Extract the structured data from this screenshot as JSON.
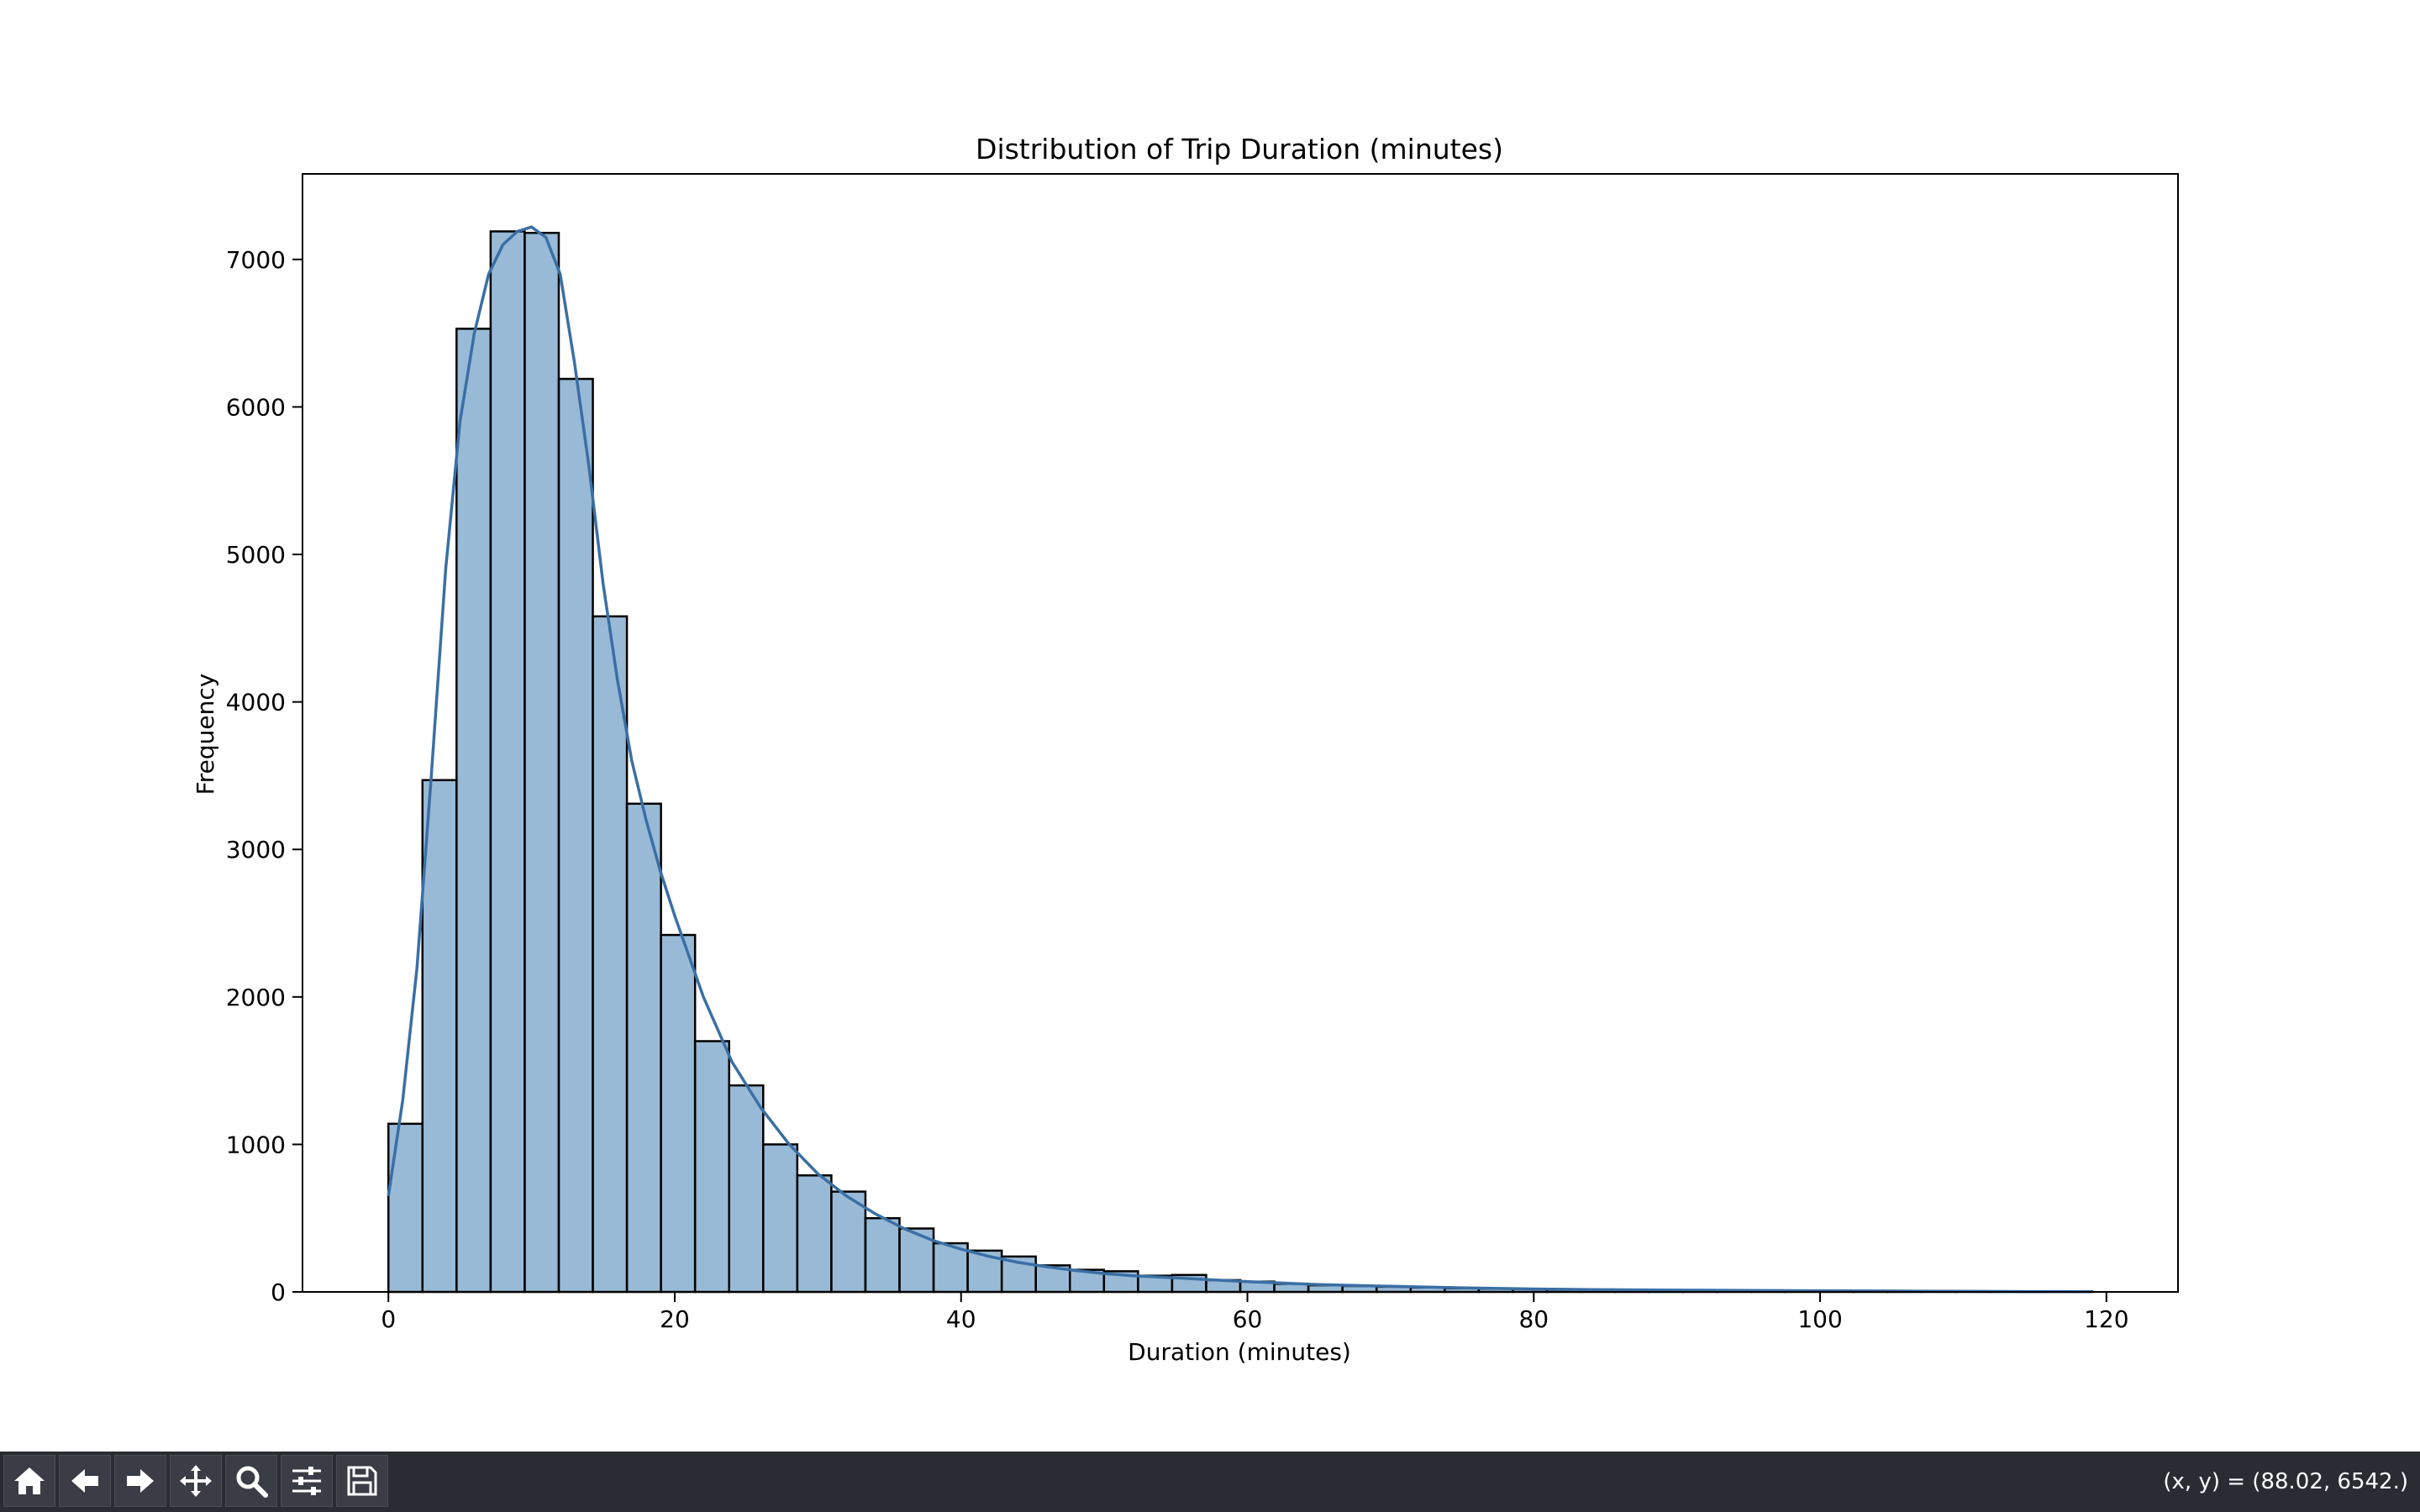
{
  "chart_data": {
    "type": "bar",
    "title": "Distribution of Trip Duration (minutes)",
    "xlabel": "Duration (minutes)",
    "ylabel": "Frequency",
    "xlim": [
      -6,
      125
    ],
    "ylim": [
      0,
      7580
    ],
    "xticks": [
      0,
      20,
      40,
      60,
      80,
      100,
      120
    ],
    "yticks": [
      0,
      1000,
      2000,
      3000,
      4000,
      5000,
      6000,
      7000
    ],
    "bin_edges": [
      0,
      2.38,
      4.76,
      7.14,
      9.52,
      11.9,
      14.28,
      16.66,
      19.04,
      21.42,
      23.8,
      26.18,
      28.56,
      30.94,
      33.32,
      35.7,
      38.08,
      40.46,
      42.84,
      45.22,
      47.6,
      49.98,
      52.36,
      54.74,
      57.12,
      59.5,
      61.88,
      64.26,
      66.64,
      69.02,
      71.4,
      73.78,
      76.16,
      78.54,
      80.92,
      83.3,
      85.68,
      88.06,
      90.44,
      92.82,
      95.2,
      97.58,
      99.96,
      102.34,
      104.72,
      107.1,
      109.48,
      111.86,
      114.24,
      116.62,
      119.0
    ],
    "values": [
      1140,
      3470,
      6530,
      7190,
      7180,
      6190,
      4580,
      3310,
      2420,
      1700,
      1400,
      1000,
      790,
      680,
      500,
      430,
      330,
      280,
      240,
      180,
      150,
      140,
      110,
      115,
      80,
      70,
      55,
      45,
      40,
      35,
      30,
      25,
      22,
      20,
      18,
      16,
      14,
      12,
      11,
      10,
      9,
      9,
      8,
      7,
      6,
      5,
      4,
      4,
      3,
      3
    ],
    "kde": {
      "x": [
        0,
        1,
        2,
        3,
        4,
        5,
        6,
        7,
        8,
        9,
        10,
        11,
        12,
        13,
        14,
        15,
        16,
        17,
        18,
        19,
        20,
        22,
        24,
        26,
        28,
        30,
        32,
        34,
        36,
        38,
        40,
        42,
        44,
        46,
        48,
        50,
        52,
        55,
        58,
        60,
        65,
        70,
        75,
        80,
        85,
        90,
        95,
        100,
        105,
        110,
        115,
        119
      ],
      "y": [
        650,
        1300,
        2200,
        3500,
        4900,
        5900,
        6500,
        6900,
        7100,
        7190,
        7220,
        7150,
        6900,
        6300,
        5600,
        4800,
        4150,
        3600,
        3200,
        2850,
        2550,
        2000,
        1560,
        1250,
        1000,
        800,
        650,
        530,
        430,
        350,
        290,
        240,
        200,
        170,
        145,
        125,
        110,
        95,
        80,
        70,
        50,
        38,
        28,
        20,
        15,
        12,
        10,
        8,
        6,
        4,
        2,
        1
      ]
    },
    "grid": false,
    "bar_color": "#4682b4",
    "line_color": "#3a6fa5"
  },
  "toolbar": {
    "buttons": [
      {
        "icon": "home-icon",
        "name": "home-button"
      },
      {
        "icon": "back-arrow-icon",
        "name": "back-button"
      },
      {
        "icon": "forward-arrow-icon",
        "name": "forward-button"
      },
      {
        "icon": "pan-move-icon",
        "name": "pan-button"
      },
      {
        "icon": "zoom-magnifier-icon",
        "name": "zoom-button"
      },
      {
        "icon": "configure-subplots-icon",
        "name": "configure-button"
      },
      {
        "icon": "save-disk-icon",
        "name": "save-button"
      }
    ],
    "coords_text": "(x, y) = (88.02, 6542.)"
  }
}
